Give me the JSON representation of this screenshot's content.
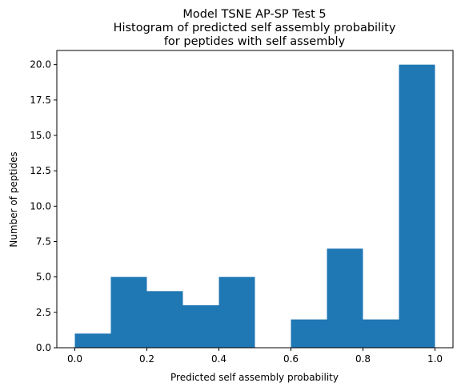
{
  "chart_data": {
    "type": "bar",
    "title_lines": [
      "Model TSNE AP-SP Test 5",
      "Histogram of predicted self assembly probability",
      "for peptides with self assembly"
    ],
    "xlabel": "Predicted self assembly probability",
    "ylabel": "Number of peptides",
    "bin_edges": [
      0.0,
      0.1,
      0.2,
      0.3,
      0.4,
      0.5,
      0.6,
      0.7,
      0.8,
      0.9,
      1.0
    ],
    "values": [
      1,
      5,
      4,
      3,
      5,
      0,
      2,
      7,
      2,
      20
    ],
    "xlim": [
      -0.05,
      1.05
    ],
    "ylim": [
      0,
      21
    ],
    "xticks": [
      0.0,
      0.2,
      0.4,
      0.6,
      0.8,
      1.0
    ],
    "xtick_labels": [
      "0.0",
      "0.2",
      "0.4",
      "0.6",
      "0.8",
      "1.0"
    ],
    "yticks": [
      0,
      2.5,
      5,
      7.5,
      10,
      12.5,
      15,
      17.5,
      20
    ],
    "ytick_labels": [
      "0.0",
      "2.5",
      "5.0",
      "7.5",
      "10.0",
      "12.5",
      "15.0",
      "17.5",
      "20.0"
    ],
    "bar_color": "#1f77b4",
    "grid": false,
    "legend": "none"
  }
}
